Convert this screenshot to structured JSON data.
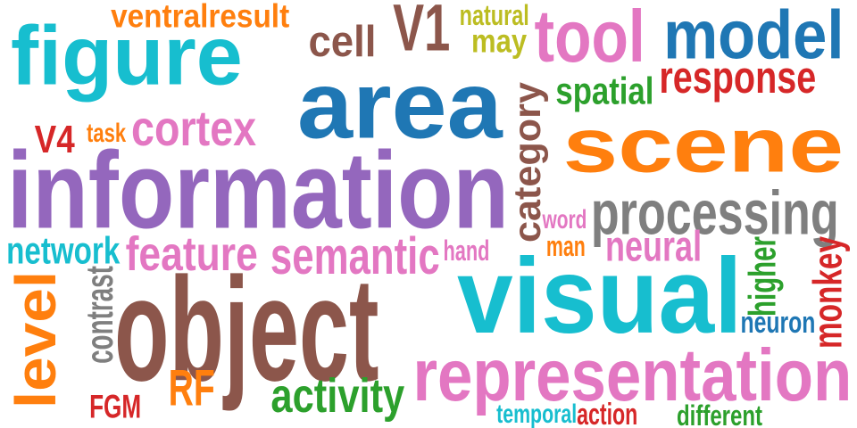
{
  "words": [
    {
      "id": "information",
      "text": "information",
      "color": "#9467bd",
      "rotated": false
    },
    {
      "id": "object",
      "text": "object",
      "color": "#8c564b",
      "rotated": false
    },
    {
      "id": "visual",
      "text": "visual",
      "color": "#17becf",
      "rotated": false
    },
    {
      "id": "area",
      "text": "area",
      "color": "#1f77b4",
      "rotated": false
    },
    {
      "id": "scene",
      "text": "scene",
      "color": "#ff7f0e",
      "rotated": false
    },
    {
      "id": "figure",
      "text": "figure",
      "color": "#17becf",
      "rotated": false
    },
    {
      "id": "representation",
      "text": "representation",
      "color": "#e377c2",
      "rotated": false
    },
    {
      "id": "model",
      "text": "model",
      "color": "#1f77b4",
      "rotated": false
    },
    {
      "id": "tool",
      "text": "tool",
      "color": "#e377c2",
      "rotated": false
    },
    {
      "id": "processing",
      "text": "processing",
      "color": "#7f7f7f",
      "rotated": false
    },
    {
      "id": "V1",
      "text": "V1",
      "color": "#8c564b",
      "rotated": false
    },
    {
      "id": "level",
      "text": "level",
      "color": "#ff7f0e",
      "rotated": true
    },
    {
      "id": "response",
      "text": "response",
      "color": "#d62728",
      "rotated": false
    },
    {
      "id": "semantic",
      "text": "semantic",
      "color": "#e377c2",
      "rotated": false
    },
    {
      "id": "feature",
      "text": "feature",
      "color": "#e377c2",
      "rotated": false
    },
    {
      "id": "category",
      "text": "category",
      "color": "#8c564b",
      "rotated": true
    },
    {
      "id": "activity",
      "text": "activity",
      "color": "#2ca02c",
      "rotated": false
    },
    {
      "id": "cortex",
      "text": "cortex",
      "color": "#e377c2",
      "rotated": false
    },
    {
      "id": "cell",
      "text": "cell",
      "color": "#8c564b",
      "rotated": false
    },
    {
      "id": "ventralresult",
      "text": "ventralresult",
      "color": "#ff7f0e",
      "rotated": false
    },
    {
      "id": "neural",
      "text": "neural",
      "color": "#e377c2",
      "rotated": false
    },
    {
      "id": "monkey",
      "text": "monkey",
      "color": "#d62728",
      "rotated": true
    },
    {
      "id": "network",
      "text": "network",
      "color": "#17becf",
      "rotated": false
    },
    {
      "id": "RF",
      "text": "RF",
      "color": "#ff7f0e",
      "rotated": false
    },
    {
      "id": "spatial",
      "text": "spatial",
      "color": "#2ca02c",
      "rotated": false
    },
    {
      "id": "may",
      "text": "may",
      "color": "#bcbd22",
      "rotated": false
    },
    {
      "id": "V4",
      "text": "V4",
      "color": "#d62728",
      "rotated": false
    },
    {
      "id": "higher",
      "text": "higher",
      "color": "#2ca02c",
      "rotated": true
    },
    {
      "id": "contrast",
      "text": "contrast",
      "color": "#7f7f7f",
      "rotated": true
    },
    {
      "id": "FGM",
      "text": "FGM",
      "color": "#d62728",
      "rotated": false
    },
    {
      "id": "neuron",
      "text": "neuron",
      "color": "#1f77b4",
      "rotated": false
    },
    {
      "id": "natural",
      "text": "natural",
      "color": "#bcbd22",
      "rotated": false
    },
    {
      "id": "temporal",
      "text": "temporal",
      "color": "#17becf",
      "rotated": false
    },
    {
      "id": "action",
      "text": "action",
      "color": "#d62728",
      "rotated": false
    },
    {
      "id": "different",
      "text": "different",
      "color": "#2ca02c",
      "rotated": false
    },
    {
      "id": "hand",
      "text": "hand",
      "color": "#e377c2",
      "rotated": false
    },
    {
      "id": "word",
      "text": "word",
      "color": "#e377c2",
      "rotated": false
    },
    {
      "id": "man",
      "text": "man",
      "color": "#ff7f0e",
      "rotated": false
    },
    {
      "id": "task",
      "text": "task",
      "color": "#ff7f0e",
      "rotated": false
    }
  ]
}
